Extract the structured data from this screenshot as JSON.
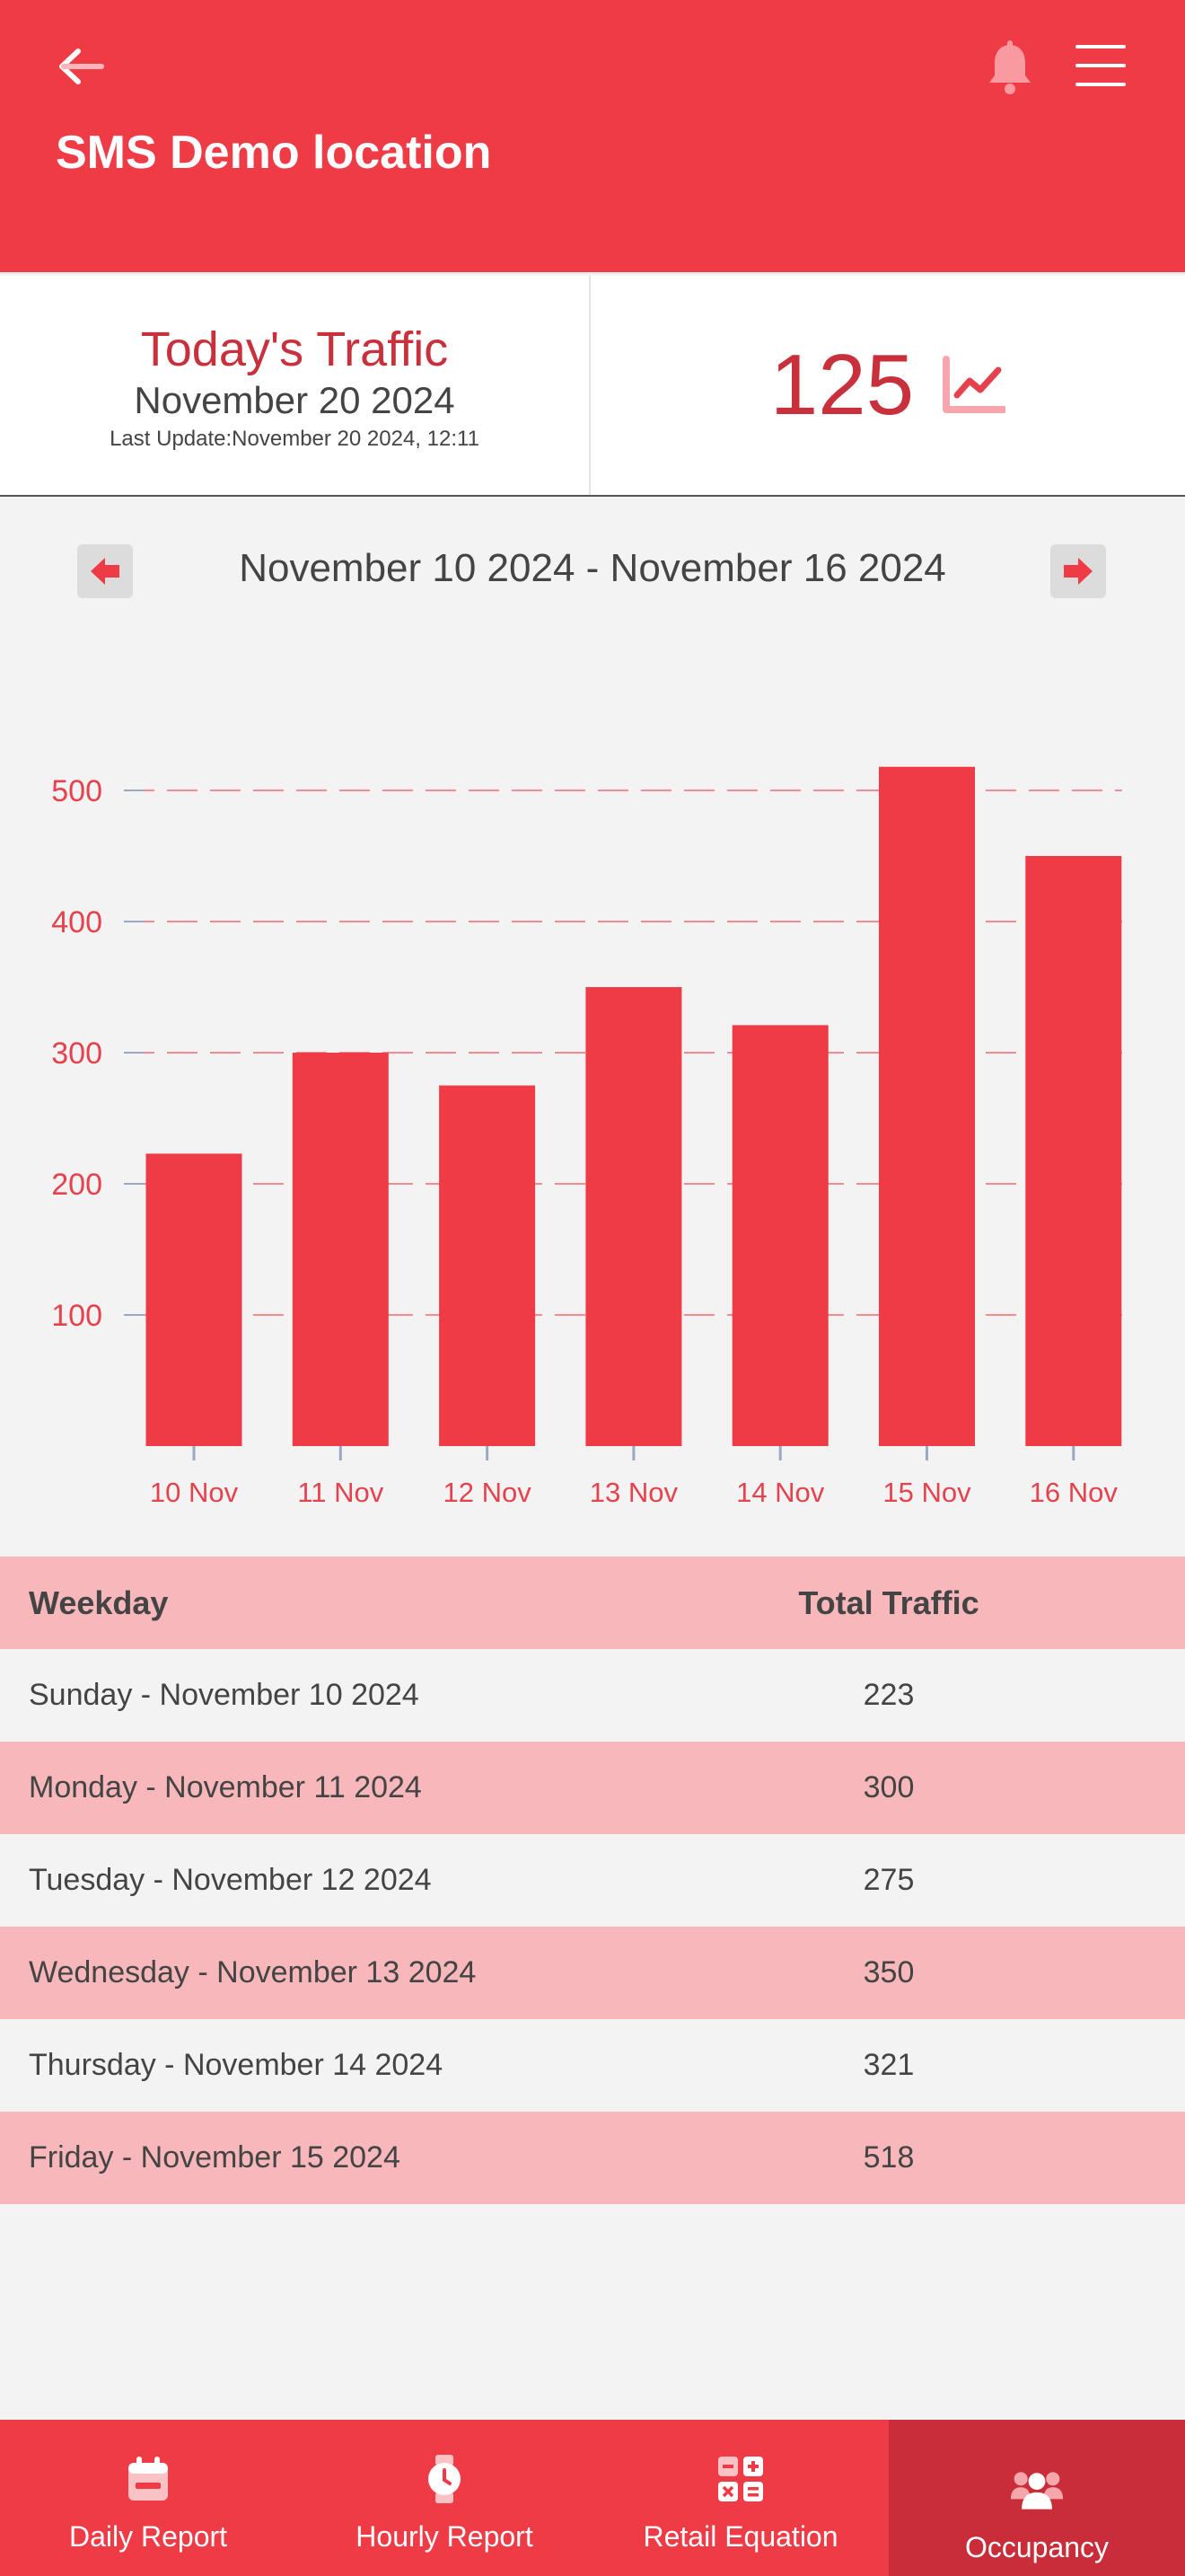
{
  "header": {
    "title": "SMS Demo location",
    "back_icon": "arrow-left-icon",
    "bell_icon": "bell-icon",
    "menu_icon": "hamburger-menu-icon"
  },
  "summary": {
    "heading": "Today's Traffic",
    "date": "November 20 2024",
    "last_update": "Last Update:November 20 2024, 12:11",
    "count": "125",
    "trend_icon": "line-chart-icon"
  },
  "range": {
    "label": "November 10 2024 - November 16 2024",
    "prev_icon": "arrow-left-icon",
    "next_icon": "arrow-right-icon"
  },
  "chart_data": {
    "type": "bar",
    "categories": [
      "10 Nov",
      "11 Nov",
      "12 Nov",
      "13 Nov",
      "14 Nov",
      "15 Nov",
      "16 Nov"
    ],
    "values": [
      223,
      300,
      275,
      350,
      321,
      518,
      450
    ],
    "y_ticks": [
      "100",
      "200",
      "300",
      "400",
      "500"
    ],
    "ylim": [
      0,
      500
    ],
    "grid": "dashed horizontal",
    "bar_color": "#ef3b45",
    "label_color": "#e5424d"
  },
  "table": {
    "headers": {
      "weekday": "Weekday",
      "total": "Total Traffic"
    },
    "rows": [
      {
        "weekday": "Sunday - November 10 2024",
        "total": "223"
      },
      {
        "weekday": "Monday - November 11 2024",
        "total": "300"
      },
      {
        "weekday": "Tuesday - November 12 2024",
        "total": "275"
      },
      {
        "weekday": "Wednesday - November 13 2024",
        "total": "350"
      },
      {
        "weekday": "Thursday - November 14 2024",
        "total": "321"
      },
      {
        "weekday": "Friday - November 15 2024",
        "total": "518"
      }
    ]
  },
  "tabs": [
    {
      "label": "Daily Report",
      "icon": "calendar-icon",
      "active": false
    },
    {
      "label": "Hourly Report",
      "icon": "watch-icon",
      "active": false
    },
    {
      "label": "Retail Equation",
      "icon": "calculator-icon",
      "active": false
    },
    {
      "label": "Occupancy",
      "icon": "users-icon",
      "active": true
    }
  ],
  "colors": {
    "brand_red": "#ef3b45",
    "dark_red": "#c92d39",
    "pink_row": "#f7b7bb",
    "background": "#f3f3f3"
  }
}
